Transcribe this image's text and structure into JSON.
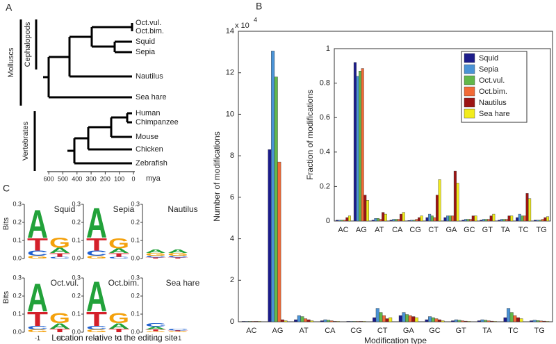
{
  "panel_labels": [
    "A",
    "B",
    "C"
  ],
  "tree": {
    "taxa": [
      "Oct.vul.",
      "Oct.bim.",
      "Squid",
      "Sepia",
      "Nautilus",
      "Sea hare",
      "Human",
      "Chimpanzee",
      "Mouse",
      "Chicken",
      "Zebrafish"
    ],
    "groups": [
      "Molluscs",
      "Cephalopods",
      "Vertebrates"
    ],
    "axis_ticks": [
      600,
      500,
      400,
      300,
      200,
      100,
      0
    ],
    "axis_unit": "mya"
  },
  "chart_data": [
    {
      "type": "bar",
      "y_label": "Number of modifications",
      "x_label": "Modification type",
      "y_multiplier": "x 10",
      "y_multiplier_exponent": "4",
      "categories": [
        "AC",
        "AG",
        "AT",
        "CA",
        "CG",
        "CT",
        "GA",
        "GC",
        "GT",
        "TA",
        "TC",
        "TG"
      ],
      "series": [
        {
          "color": "#1c1c8a",
          "values": [
            0.02,
            8.3,
            0.1,
            0.05,
            0.02,
            0.2,
            0.3,
            0.1,
            0.05,
            0.05,
            0.2,
            0.05
          ]
        },
        {
          "color": "#4a93d6",
          "values": [
            0.02,
            13.05,
            0.3,
            0.1,
            0.02,
            0.65,
            0.45,
            0.25,
            0.1,
            0.1,
            0.65,
            0.08
          ]
        },
        {
          "color": "#62b84a",
          "values": [
            0.02,
            11.8,
            0.25,
            0.08,
            0.02,
            0.45,
            0.35,
            0.2,
            0.08,
            0.08,
            0.45,
            0.06
          ]
        },
        {
          "color": "#f26a36",
          "values": [
            0.02,
            7.7,
            0.15,
            0.05,
            0.02,
            0.3,
            0.3,
            0.15,
            0.05,
            0.05,
            0.3,
            0.04
          ]
        },
        {
          "color": "#9c1414",
          "values": [
            0.02,
            0.1,
            0.1,
            0.02,
            0.02,
            0.15,
            0.25,
            0.1,
            0.03,
            0.03,
            0.2,
            0.03
          ]
        },
        {
          "color": "#f2ec1c",
          "values": [
            0.02,
            0.05,
            0.05,
            0.02,
            0.02,
            0.2,
            0.2,
            0.05,
            0.02,
            0.02,
            0.15,
            0.02
          ]
        }
      ],
      "ylim": [
        0,
        14
      ],
      "yticks": [
        0,
        2,
        4,
        6,
        8,
        10,
        12,
        14
      ]
    },
    {
      "type": "bar",
      "y_label": "Fraction of modifications",
      "categories": [
        "AC",
        "AG",
        "AT",
        "CA",
        "CG",
        "CT",
        "GA",
        "GC",
        "GT",
        "TA",
        "TC",
        "TG"
      ],
      "series": [
        {
          "name": "Squid",
          "color": "#1c1c8a",
          "values": [
            0.005,
            0.92,
            0.005,
            0.005,
            0.003,
            0.02,
            0.02,
            0.005,
            0.005,
            0.005,
            0.02,
            0.005
          ]
        },
        {
          "name": "Sepia",
          "color": "#4a93d6",
          "values": [
            0.005,
            0.84,
            0.015,
            0.01,
            0.005,
            0.04,
            0.03,
            0.01,
            0.01,
            0.01,
            0.04,
            0.005
          ]
        },
        {
          "name": "Oct.vul.",
          "color": "#62b84a",
          "values": [
            0.005,
            0.87,
            0.015,
            0.01,
            0.005,
            0.03,
            0.03,
            0.01,
            0.01,
            0.01,
            0.03,
            0.005
          ]
        },
        {
          "name": "Oct.bim.",
          "color": "#f26a36",
          "values": [
            0.005,
            0.885,
            0.01,
            0.01,
            0.01,
            0.02,
            0.03,
            0.01,
            0.01,
            0.01,
            0.03,
            0.01
          ]
        },
        {
          "name": "Nautilus",
          "color": "#9c1414",
          "values": [
            0.02,
            0.15,
            0.05,
            0.04,
            0.02,
            0.15,
            0.29,
            0.03,
            0.03,
            0.03,
            0.16,
            0.02
          ]
        },
        {
          "name": "Sea hare",
          "color": "#f2ec1c",
          "values": [
            0.03,
            0.12,
            0.04,
            0.05,
            0.03,
            0.24,
            0.22,
            0.03,
            0.04,
            0.03,
            0.13,
            0.025
          ]
        }
      ],
      "ylim": [
        0,
        1
      ],
      "yticks": [
        0,
        0.2,
        0.4,
        0.6,
        0.8,
        1
      ],
      "legend": "upper right"
    }
  ],
  "logos": {
    "ylim": [
      0,
      0.3
    ],
    "yticks": [
      {
        "value": 0,
        "label": "0.0"
      },
      {
        "value": 0.1,
        "label": "0.1"
      },
      {
        "value": 0.2,
        "label": "0.2"
      },
      {
        "value": 0.3,
        "label": "0.3"
      }
    ],
    "y_label": "Bits",
    "x_label": "Location relative to the editing site",
    "positions": [
      "-1",
      "+1"
    ],
    "letter_colors": {
      "A": "#22a23a",
      "C": "#1f5fcf",
      "G": "#f4a10c",
      "T": "#d4202a"
    },
    "items": [
      {
        "name": "Squid",
        "columns": [
          [
            [
              "A",
              0.16
            ],
            [
              "T",
              0.07
            ],
            [
              "C",
              0.03
            ],
            [
              "G",
              0.015
            ]
          ],
          [
            [
              "G",
              0.06
            ],
            [
              "A",
              0.03
            ],
            [
              "T",
              0.02
            ],
            [
              "C",
              0.01
            ]
          ]
        ]
      },
      {
        "name": "Sepia",
        "columns": [
          [
            [
              "A",
              0.17
            ],
            [
              "T",
              0.07
            ],
            [
              "C",
              0.03
            ],
            [
              "G",
              0.015
            ]
          ],
          [
            [
              "G",
              0.06
            ],
            [
              "A",
              0.025
            ],
            [
              "T",
              0.02
            ],
            [
              "C",
              0.01
            ]
          ]
        ]
      },
      {
        "name": "Nautilus",
        "columns": [
          [
            [
              "A",
              0.02
            ],
            [
              "G",
              0.015
            ],
            [
              "C",
              0.01
            ],
            [
              "T",
              0.005
            ]
          ],
          [
            [
              "A",
              0.02
            ],
            [
              "G",
              0.015
            ],
            [
              "C",
              0.01
            ],
            [
              "T",
              0.005
            ]
          ]
        ]
      },
      {
        "name": "Oct.vul.",
        "columns": [
          [
            [
              "A",
              0.16
            ],
            [
              "T",
              0.08
            ],
            [
              "C",
              0.02
            ],
            [
              "G",
              0.015
            ]
          ],
          [
            [
              "G",
              0.06
            ],
            [
              "A",
              0.03
            ],
            [
              "T",
              0.02
            ]
          ]
        ]
      },
      {
        "name": "Oct.bim.",
        "columns": [
          [
            [
              "A",
              0.17
            ],
            [
              "T",
              0.08
            ],
            [
              "C",
              0.02
            ],
            [
              "G",
              0.015
            ]
          ],
          [
            [
              "G",
              0.06
            ],
            [
              "A",
              0.03
            ],
            [
              "T",
              0.02
            ]
          ]
        ]
      },
      {
        "name": "Sea hare",
        "columns": [
          [
            [
              "C",
              0.02
            ],
            [
              "A",
              0.015
            ],
            [
              "T",
              0.01
            ],
            [
              "G",
              0.005
            ]
          ],
          [
            [
              "C",
              0.01
            ],
            [
              "T",
              0.005
            ],
            [
              "G",
              0.005
            ]
          ]
        ]
      }
    ]
  }
}
